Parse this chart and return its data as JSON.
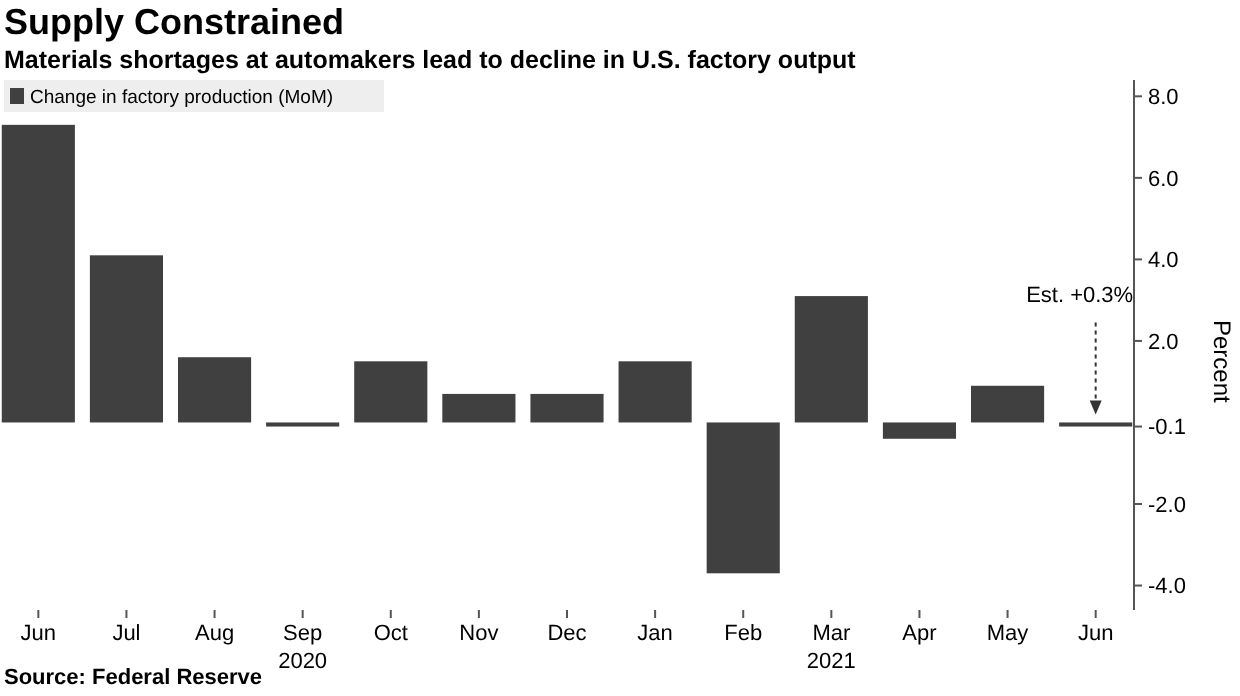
{
  "chart_data": {
    "type": "bar",
    "title": "Supply Constrained",
    "subtitle": "Materials shortages at automakers lead to decline in U.S. factory output",
    "ylabel": "Percent",
    "categories": [
      "Jun",
      "Jul",
      "Aug",
      "Sep\n2020",
      "Oct",
      "Nov",
      "Dec",
      "Jan",
      "Feb",
      "Mar\n2021",
      "Apr",
      "May",
      "Jun"
    ],
    "series": [
      {
        "name": "Change in factory production (MoM)",
        "color": "#404040",
        "values": [
          7.3,
          4.1,
          1.6,
          -0.1,
          1.5,
          0.7,
          0.7,
          1.5,
          -3.7,
          3.1,
          -0.4,
          0.9,
          -0.1
        ]
      }
    ],
    "ylim": [
      -4.6,
      8.4
    ],
    "yticks": [
      {
        "value": 8,
        "label": "8.0"
      },
      {
        "value": 6,
        "label": "6.0"
      },
      {
        "value": 4,
        "label": "4.0"
      },
      {
        "value": 2,
        "label": "2.0"
      },
      -0.1,
      {
        "value": -2,
        "label": "-2.0"
      },
      {
        "value": -4,
        "label": "-4.0"
      }
    ],
    "legend": "top left",
    "annotations": [
      "Est. +0.3%",
      "Source: Federal Reserve"
    ]
  }
}
